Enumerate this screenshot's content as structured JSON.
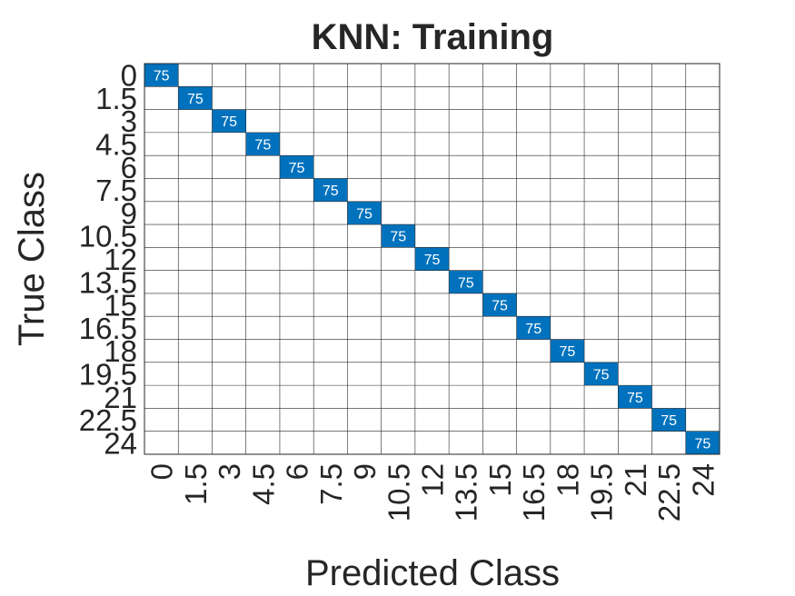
{
  "chart_data": {
    "type": "heatmap",
    "title": "KNN: Training",
    "xlabel": "Predicted Class",
    "ylabel": "True Class",
    "classes": [
      "0",
      "1.5",
      "3",
      "4.5",
      "6",
      "7.5",
      "9",
      "10.5",
      "12",
      "13.5",
      "15",
      "16.5",
      "18",
      "19.5",
      "21",
      "22.5",
      "24"
    ],
    "cells": [
      {
        "row": 0,
        "col": 0,
        "value": 75
      },
      {
        "row": 1,
        "col": 1,
        "value": 75
      },
      {
        "row": 2,
        "col": 2,
        "value": 75
      },
      {
        "row": 3,
        "col": 3,
        "value": 75
      },
      {
        "row": 4,
        "col": 4,
        "value": 75
      },
      {
        "row": 5,
        "col": 5,
        "value": 75
      },
      {
        "row": 6,
        "col": 6,
        "value": 75
      },
      {
        "row": 7,
        "col": 7,
        "value": 75
      },
      {
        "row": 8,
        "col": 8,
        "value": 75
      },
      {
        "row": 9,
        "col": 9,
        "value": 75
      },
      {
        "row": 10,
        "col": 10,
        "value": 75
      },
      {
        "row": 11,
        "col": 11,
        "value": 75
      },
      {
        "row": 12,
        "col": 12,
        "value": 75
      },
      {
        "row": 13,
        "col": 13,
        "value": 75
      },
      {
        "row": 14,
        "col": 14,
        "value": 75
      },
      {
        "row": 15,
        "col": 15,
        "value": 75
      },
      {
        "row": 16,
        "col": 16,
        "value": 75
      }
    ],
    "cell_color": "#0072bd",
    "grid": true
  }
}
